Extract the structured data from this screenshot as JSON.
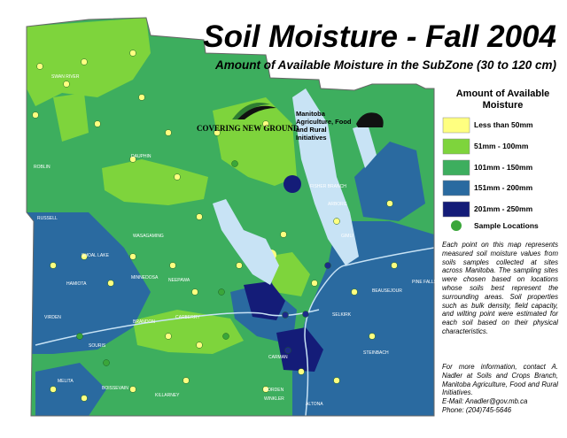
{
  "header": {
    "title": "Soil Moisture - Fall 2004",
    "subtitle": "Amount of Available Moisture in the SubZone (30 to 120 cm)"
  },
  "logos": {
    "left": "COVERING NEW GROUND",
    "right": "Manitoba Agriculture, Food and Rural Initiatives"
  },
  "legend": {
    "title": "Amount of Available Moisture",
    "items": [
      {
        "label": "Less than 50mm",
        "color": "#ffff80"
      },
      {
        "label": "51mm - 100mm",
        "color": "#7ed43c"
      },
      {
        "label": "101mm - 150mm",
        "color": "#3dae5e"
      },
      {
        "label": "151mm - 200mm",
        "color": "#2a6aa0"
      },
      {
        "label": "201mm - 250mm",
        "color": "#141c78"
      }
    ],
    "sample": {
      "label": "Sample Locations",
      "color": "#3aa63a"
    }
  },
  "description": "Each point on this map represents measured soil moisture values from soils samples collected at sites across Manitoba. The sampling sites were chosen based on locations whose soils best represent the surrounding areas. Soil properties such as bulk density, field capacity, and wilting point were estimated for each soil based on their physical characteristics.",
  "contact": {
    "text": "For more information, contact A. Nadler at Soils and Crops Branch, Manitoba Agriculture, Food and Rural Initiatives.",
    "email": "E-Mail: Anadler@gov.mb.ca",
    "phone": "Phone: (204)745-5646"
  },
  "map": {
    "towns": [
      "SWAN RIVER",
      "ROBLIN",
      "DAUPHIN",
      "RUSSELL",
      "WASAGAMING",
      "SHOAL LAKE",
      "MINNEDOSA",
      "NEEPAWA",
      "HAMIOTA",
      "VIRDEN",
      "BRANDON",
      "CARBERRY",
      "SOURIS",
      "BOISSEVAIN",
      "KILLARNEY",
      "MELITA",
      "MORDEN",
      "WINKLER",
      "ALTONA",
      "CARMAN",
      "STEINBACH",
      "SELKIRK",
      "BEAUSEJOUR",
      "PINE FALLS",
      "GIMLI",
      "ARBORG",
      "FISHER BRANCH"
    ]
  }
}
